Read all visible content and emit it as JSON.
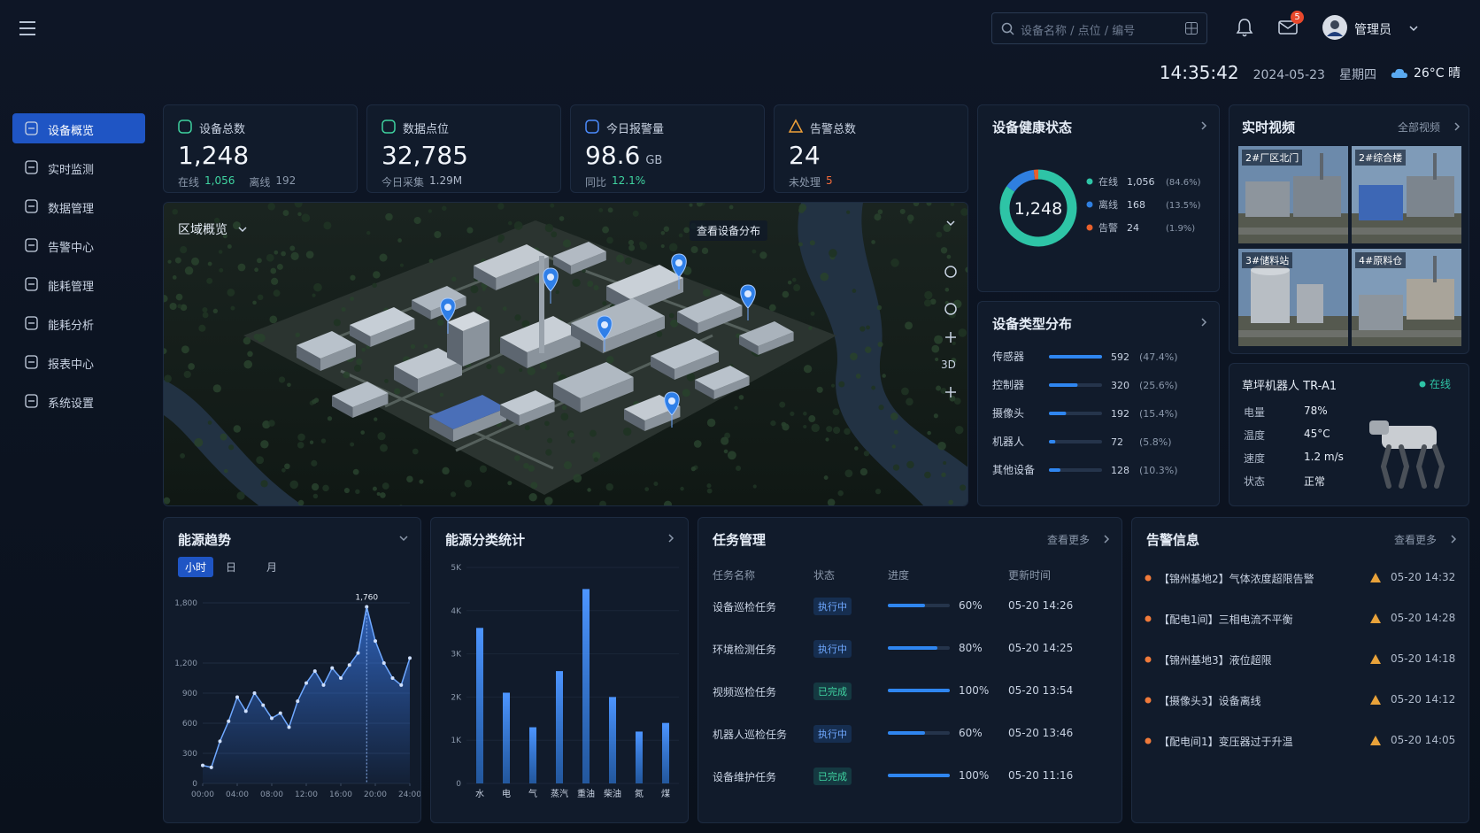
{
  "header": {
    "search_placeholder": "设备名称 / 点位 / 编号",
    "mail_badge": "5",
    "user": "管理员",
    "time": "14:35:42",
    "date": "2024-05-23",
    "weekday": "星期四",
    "weather": "26°C 晴"
  },
  "sidebar": [
    "设备概览",
    "实时监测",
    "数据管理",
    "告警中心",
    "能耗管理",
    "能耗分析",
    "报表中心",
    "系统设置"
  ],
  "kpis": [
    {
      "label": "设备总数",
      "value": "1,248",
      "details": [
        [
          "在线",
          "1,056"
        ],
        [
          "离线",
          "192"
        ]
      ]
    },
    {
      "label": "数据点位",
      "value": "32,785",
      "details": [
        [
          "今日采集",
          "1.29M"
        ]
      ]
    },
    {
      "label": "今日报警量",
      "value": "98.6",
      "unit": "GB",
      "details": [
        [
          "同比",
          "12.1%"
        ]
      ]
    },
    {
      "label": "告警总数",
      "value": "24",
      "details": [
        [
          "未处理",
          "5"
        ]
      ]
    }
  ],
  "map": {
    "title": "区域概览",
    "pin_label": "查看设备分布",
    "mode": "3D"
  },
  "health": {
    "title": "设备健康状态",
    "total": "1,248",
    "items": [
      {
        "name": "在线",
        "value": 1056,
        "value_label": "1,056",
        "share": "(84.6%)",
        "color": "#2ec4a6"
      },
      {
        "name": "离线",
        "value": 168,
        "value_label": "168",
        "share": "(13.5%)",
        "color": "#2f7fe0"
      },
      {
        "name": "告警",
        "value": 24,
        "value_label": "24",
        "share": "(1.9%)",
        "color": "#e8602c"
      }
    ]
  },
  "types": {
    "title": "设备类型分布",
    "color": "#2f86f0",
    "items": [
      {
        "name": "传感器",
        "value": 592,
        "share": "(47.4%)"
      },
      {
        "name": "控制器",
        "value": 320,
        "share": "(25.6%)"
      },
      {
        "name": "摄像头",
        "value": 192,
        "share": "(15.4%)"
      },
      {
        "name": "机器人",
        "value": 72,
        "share": "(5.8%)"
      },
      {
        "name": "其他设备",
        "value": 128,
        "share": "(10.3%)"
      }
    ]
  },
  "videos": {
    "title": "实时视频",
    "more": "全部视频",
    "feeds": [
      "2#厂区北门",
      "2#综合楼",
      "3#储料站",
      "4#原料仓"
    ]
  },
  "robot": {
    "name": "草坪机器人 TR-A1",
    "status": "在线",
    "rows": [
      [
        "电量",
        "78%"
      ],
      [
        "温度",
        "45°C"
      ],
      [
        "速度",
        "1.2 m/s"
      ],
      [
        "状态",
        "正常"
      ]
    ]
  },
  "energy_trend": {
    "type": "line",
    "title": "能源趋势",
    "tabs": [
      "小时",
      "日",
      "月"
    ],
    "color": "#3a7df0",
    "x": [
      0,
      1,
      2,
      3,
      4,
      5,
      6,
      7,
      8,
      9,
      10,
      11,
      12,
      13,
      14,
      15,
      16,
      17,
      18,
      19,
      20,
      21,
      22,
      23,
      24
    ],
    "values": [
      180,
      160,
      420,
      620,
      860,
      720,
      900,
      780,
      650,
      700,
      560,
      820,
      1000,
      1120,
      980,
      1150,
      1050,
      1180,
      1300,
      1760,
      1420,
      1200,
      1050,
      980,
      1250
    ],
    "annotation": "1,760",
    "xlim": [
      0,
      24
    ],
    "xticks": [
      {
        "value": 0,
        "label": "00:00"
      },
      {
        "value": 4,
        "label": "04:00"
      },
      {
        "value": 8,
        "label": "08:00"
      },
      {
        "value": 12,
        "label": "12:00"
      },
      {
        "value": 16,
        "label": "16:00"
      },
      {
        "value": 20,
        "label": "20:00"
      },
      {
        "value": 24,
        "label": "24:00"
      }
    ],
    "ylim": [
      0,
      1800
    ],
    "yticks": [
      0,
      300,
      600,
      900,
      {
        "value": 1200,
        "label": "1,200"
      },
      {
        "value": 1800,
        "label": "1,800"
      }
    ],
    "grid": true
  },
  "energy_types": {
    "type": "bar",
    "title": "能源分类统计",
    "color": "#2f7fe8",
    "categories": [
      "水",
      "电",
      "气",
      "蒸汽",
      "重油",
      "柴油",
      "氮",
      "煤"
    ],
    "values": [
      3600,
      2100,
      1300,
      2600,
      4500,
      2000,
      1200,
      1400
    ],
    "ylim": [
      0,
      5000
    ],
    "yticks": [
      0,
      {
        "value": 1000,
        "label": "1K"
      },
      {
        "value": 2000,
        "label": "2K"
      },
      {
        "value": 3000,
        "label": "3K"
      },
      {
        "value": 4000,
        "label": "4K"
      },
      {
        "value": 5000,
        "label": "5K"
      }
    ]
  },
  "tasks": {
    "title": "任务管理",
    "more": "查看更多",
    "columns": [
      "任务名称",
      "状态",
      "进度",
      "更新时间"
    ],
    "rows": [
      {
        "name": "设备巡检任务",
        "status": "执行中",
        "progress": 60,
        "progress_label": "60%",
        "time": "05-20 14:26"
      },
      {
        "name": "环境检测任务",
        "status": "执行中",
        "progress": 80,
        "progress_label": "80%",
        "time": "05-20 14:25"
      },
      {
        "name": "视频巡检任务",
        "status": "已完成",
        "progress": 100,
        "progress_label": "100%",
        "time": "05-20 13:54"
      },
      {
        "name": "机器人巡检任务",
        "status": "执行中",
        "progress": 60,
        "progress_label": "60%",
        "time": "05-20 13:46"
      },
      {
        "name": "设备维护任务",
        "status": "已完成",
        "progress": 100,
        "progress_label": "100%",
        "time": "05-20 11:16"
      }
    ]
  },
  "alerts": {
    "title": "告警信息",
    "more": "查看更多",
    "items": [
      {
        "text": "【锦州基地2】气体浓度超限告警",
        "time": "05-20 14:32"
      },
      {
        "text": "【配电1间】三相电流不平衡",
        "time": "05-20 14:28"
      },
      {
        "text": "【锦州基地3】液位超限",
        "time": "05-20 14:18"
      },
      {
        "text": "【摄像头3】设备离线",
        "time": "05-20 14:12"
      },
      {
        "text": "【配电间1】变压器过于升温",
        "time": "05-20 14:05"
      }
    ]
  }
}
